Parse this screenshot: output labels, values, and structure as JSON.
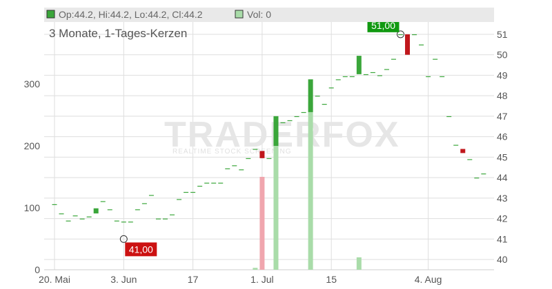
{
  "legend": {
    "ohlc_text": "Op:44.2, Hi:44.2, Lo:44.2, Cl:44.2",
    "vol_text": "Vol: 0"
  },
  "subtitle": "3 Monate, 1-Tages-Kerzen",
  "watermark": {
    "brand": "TRADERFOX",
    "tagline": "REALTIME STOCK SCREENING"
  },
  "colors": {
    "up": "#3aa63a",
    "down": "#c0171c",
    "flat": "#3aa63a",
    "vol_up": "#a9dca9",
    "vol_down": "#f0a6ae",
    "grid": "#dedede",
    "legend_bg": "#e9e9e9",
    "high_label_bg": "#119911",
    "low_label_bg": "#cc1111"
  },
  "chart_data": {
    "type": "candlestick",
    "price_axis": {
      "ticks": [
        40,
        41,
        42,
        43,
        44,
        45,
        46,
        47,
        48,
        49,
        50,
        51
      ],
      "range": [
        39.5,
        51.6
      ]
    },
    "volume_axis": {
      "ticks": [
        0,
        100,
        200,
        300
      ],
      "range": [
        0,
        400
      ]
    },
    "x_ticks": [
      {
        "label": "20. Mai",
        "index": 0
      },
      {
        "label": "3. Jun",
        "index": 10
      },
      {
        "label": "17",
        "index": 20
      },
      {
        "label": "1. Jul",
        "index": 30
      },
      {
        "label": "15",
        "index": 40
      },
      {
        "label": "4. Aug",
        "index": 54
      }
    ],
    "x_range": [
      0,
      62.5
    ],
    "candles": [
      {
        "o": 42.7,
        "c": 42.7
      },
      {
        "o": 42.25,
        "c": 42.25
      },
      {
        "o": 41.9,
        "c": 41.9
      },
      {
        "o": 42.15,
        "c": 42.15
      },
      {
        "o": 42.0,
        "c": 42.0
      },
      {
        "o": 42.1,
        "c": 42.1
      },
      {
        "o": 42.25,
        "c": 42.5
      },
      {
        "o": 42.85,
        "c": 42.85
      },
      {
        "o": 42.45,
        "c": 42.45
      },
      {
        "o": 41.9,
        "c": 41.9
      },
      {
        "o": 41.85,
        "c": 41.85
      },
      {
        "o": 41.85,
        "c": 41.85
      },
      {
        "o": 42.45,
        "c": 42.45
      },
      {
        "o": 42.75,
        "c": 42.75
      },
      {
        "o": 43.15,
        "c": 43.15
      },
      {
        "o": 42.0,
        "c": 42.0
      },
      {
        "o": 42.0,
        "c": 42.0
      },
      {
        "o": 42.2,
        "c": 42.2
      },
      {
        "o": 42.95,
        "c": 42.95
      },
      {
        "o": 43.3,
        "c": 43.3
      },
      {
        "o": 43.3,
        "c": 43.3
      },
      {
        "o": 43.6,
        "c": 43.6
      },
      {
        "o": 43.75,
        "c": 43.75
      },
      {
        "o": 43.75,
        "c": 43.75
      },
      {
        "o": 43.75,
        "c": 43.75
      },
      {
        "o": 44.45,
        "c": 44.45
      },
      {
        "o": 44.6,
        "c": 44.6
      },
      {
        "o": 44.4,
        "c": 44.4
      },
      {
        "o": 44.95,
        "c": 44.95
      },
      {
        "o": 45.4,
        "c": 45.4
      },
      {
        "o": 45.3,
        "c": 44.95
      },
      {
        "o": 44.95,
        "c": 44.95
      },
      {
        "o": 45.55,
        "c": 47.0
      },
      {
        "o": 46.7,
        "c": 46.7
      },
      {
        "o": 46.8,
        "c": 46.8
      },
      {
        "o": 47.0,
        "c": 47.0
      },
      {
        "o": 47.2,
        "c": 47.2
      },
      {
        "o": 47.2,
        "c": 48.8
      },
      {
        "o": 48.0,
        "c": 48.0
      },
      {
        "o": 47.6,
        "c": 47.6
      },
      {
        "o": 48.4,
        "c": 48.4
      },
      {
        "o": 48.8,
        "c": 48.8
      },
      {
        "o": 48.95,
        "c": 48.95
      },
      {
        "o": 48.95,
        "c": 48.95
      },
      {
        "o": 49.05,
        "c": 49.95
      },
      {
        "o": 49.05,
        "c": 49.05
      },
      {
        "o": 49.15,
        "c": 49.15
      },
      {
        "o": 49.0,
        "c": 49.0
      },
      {
        "o": 49.3,
        "c": 49.3
      },
      {
        "o": 49.8,
        "c": 49.8
      },
      {
        "o": 51.0,
        "c": 51.0
      },
      {
        "o": 51.0,
        "c": 50.0
      },
      {
        "o": 51.0,
        "c": 51.0
      },
      {
        "o": 50.5,
        "c": 50.5
      },
      {
        "o": 48.95,
        "c": 48.95
      },
      {
        "o": 49.8,
        "c": 49.8
      },
      {
        "o": 48.95,
        "c": 48.95
      },
      {
        "o": 47.0,
        "c": 47.0
      },
      {
        "o": 45.6,
        "c": 45.6
      },
      {
        "o": 45.4,
        "c": 45.2
      },
      {
        "o": 44.9,
        "c": 44.9
      },
      {
        "o": 44.0,
        "c": 44.0
      },
      {
        "o": 44.2,
        "c": 44.2
      }
    ],
    "volumes": [
      {
        "i": 29,
        "v": 3,
        "dir": "up"
      },
      {
        "i": 30,
        "v": 150,
        "dir": "down"
      },
      {
        "i": 32,
        "v": 248,
        "dir": "up"
      },
      {
        "i": 37,
        "v": 270,
        "dir": "up"
      },
      {
        "i": 44,
        "v": 20,
        "dir": "up"
      }
    ],
    "annotations": [
      {
        "index": 10,
        "value": 41.0,
        "label": "41,00",
        "kind": "low"
      },
      {
        "index": 50,
        "value": 51.0,
        "label": "51,00",
        "kind": "high"
      }
    ]
  }
}
